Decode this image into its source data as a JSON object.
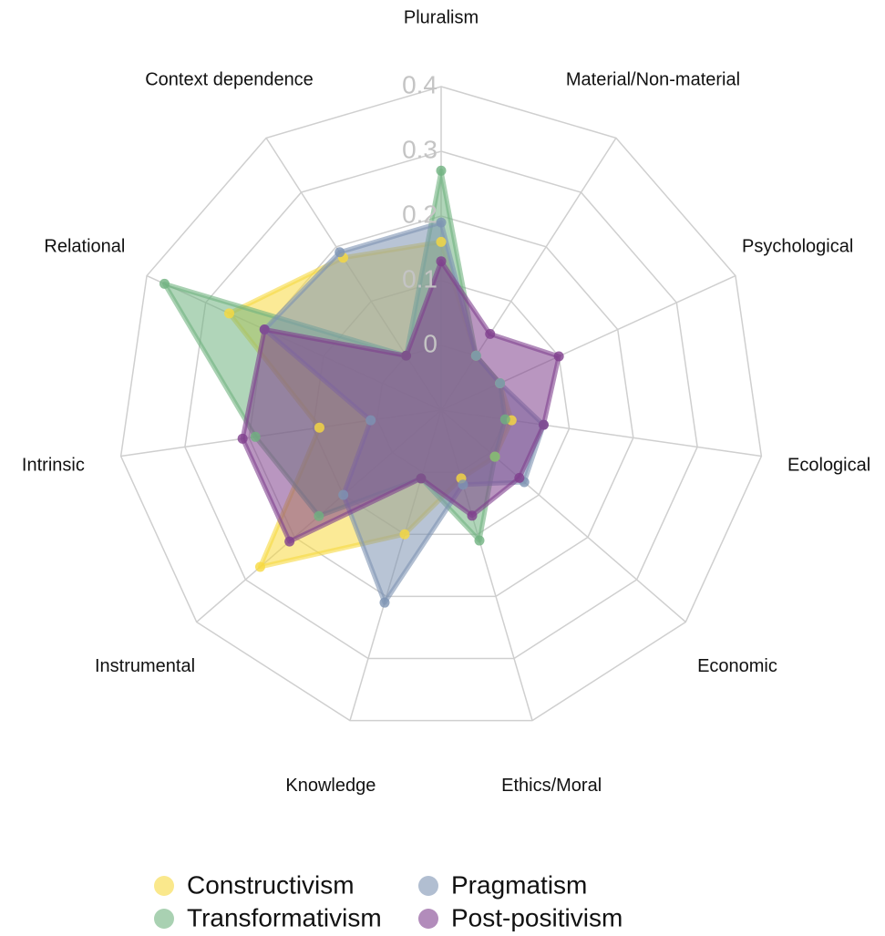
{
  "chart_data": {
    "type": "radar",
    "categories": [
      "Pluralism",
      "Material/Non-material",
      "Psychological",
      "Ecological",
      "Economic",
      "Ethics/Moral",
      "Knowledge",
      "Instrumental",
      "Intrinsic",
      "Relational",
      "Context dependence"
    ],
    "ylim": [
      -0.1,
      0.4
    ],
    "yticks": [
      0,
      0.1,
      0.2,
      0.3,
      0.4
    ],
    "grid": true,
    "legend": "bottom",
    "series": [
      {
        "name": "Constructivism",
        "color": "#f7d940",
        "values": [
          0.16,
          0,
          0,
          0.01,
          0.01,
          0.01,
          0.1,
          0.27,
          0.09,
          0.26,
          0.18
        ]
      },
      {
        "name": "Transformativism",
        "color": "#6fb27f",
        "values": [
          0.27,
          0,
          0,
          0,
          0.01,
          0.11,
          0.01,
          0.15,
          0.19,
          0.37,
          0
        ]
      },
      {
        "name": "Pragmatism",
        "color": "#7d93b3",
        "values": [
          0.19,
          0,
          0,
          0.06,
          0.07,
          0.02,
          0.21,
          0.1,
          0.01,
          0.2,
          0.19
        ]
      },
      {
        "name": "Post-positivism",
        "color": "#7f3f8d",
        "values": [
          0.13,
          0.04,
          0.1,
          0.06,
          0.06,
          0.07,
          0.01,
          0.21,
          0.21,
          0.2,
          0
        ]
      }
    ]
  }
}
